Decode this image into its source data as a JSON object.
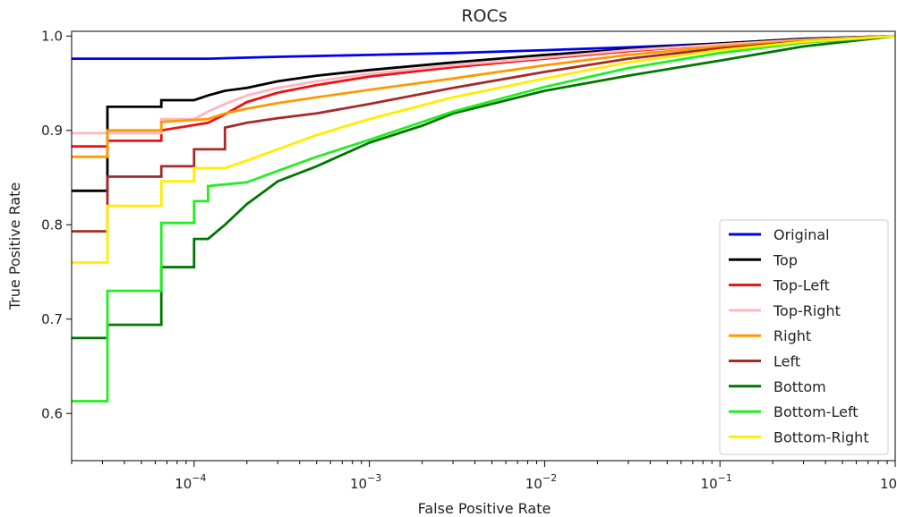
{
  "chart_data": {
    "type": "line",
    "title": "ROCs",
    "xlabel": "False Positive Rate",
    "ylabel": "True Positive Rate",
    "xscale": "log",
    "xlim": [
      2e-05,
      1.0
    ],
    "ylim": [
      0.55,
      1.005
    ],
    "grid": false,
    "legend_position": "lower-right",
    "xticks": [
      {
        "value": 0.0001,
        "base": "10",
        "exp": "−4"
      },
      {
        "value": 0.001,
        "base": "10",
        "exp": "−3"
      },
      {
        "value": 0.01,
        "base": "10",
        "exp": "−2"
      },
      {
        "value": 0.1,
        "base": "10",
        "exp": "−1"
      },
      {
        "value": 1.0,
        "base": "10",
        "exp": "0"
      }
    ],
    "yticks": [
      {
        "value": 0.6,
        "label": "0.6"
      },
      {
        "value": 0.7,
        "label": "0.7"
      },
      {
        "value": 0.8,
        "label": "0.8"
      },
      {
        "value": 0.9,
        "label": "0.9"
      },
      {
        "value": 1.0,
        "label": "1.0"
      }
    ],
    "series": [
      {
        "name": "Original",
        "color": "#0000ee",
        "points": [
          [
            2e-05,
            0.976
          ],
          [
            0.00012,
            0.976
          ],
          [
            0.0003,
            0.978
          ],
          [
            0.001,
            0.98
          ],
          [
            0.003,
            0.982
          ],
          [
            0.01,
            0.985
          ],
          [
            0.03,
            0.988
          ],
          [
            0.1,
            0.992
          ],
          [
            0.3,
            0.997
          ],
          [
            1.0,
            1.0
          ]
        ]
      },
      {
        "name": "Top",
        "color": "#000000",
        "points": [
          [
            2e-05,
            0.836
          ],
          [
            3.2e-05,
            0.836
          ],
          [
            3.2e-05,
            0.925
          ],
          [
            6.5e-05,
            0.925
          ],
          [
            6.5e-05,
            0.932
          ],
          [
            0.0001,
            0.932
          ],
          [
            0.00012,
            0.937
          ],
          [
            0.00015,
            0.942
          ],
          [
            0.0002,
            0.945
          ],
          [
            0.0003,
            0.952
          ],
          [
            0.0005,
            0.958
          ],
          [
            0.001,
            0.964
          ],
          [
            0.003,
            0.972
          ],
          [
            0.01,
            0.98
          ],
          [
            0.03,
            0.986
          ],
          [
            0.1,
            0.992
          ],
          [
            0.3,
            0.997
          ],
          [
            1.0,
            1.0
          ]
        ]
      },
      {
        "name": "Top-Left",
        "color": "#ee1111",
        "points": [
          [
            2e-05,
            0.883
          ],
          [
            3.2e-05,
            0.883
          ],
          [
            3.2e-05,
            0.889
          ],
          [
            6.5e-05,
            0.889
          ],
          [
            6.5e-05,
            0.9
          ],
          [
            0.00012,
            0.908
          ],
          [
            0.00015,
            0.917
          ],
          [
            0.0002,
            0.93
          ],
          [
            0.0003,
            0.94
          ],
          [
            0.0005,
            0.948
          ],
          [
            0.001,
            0.957
          ],
          [
            0.003,
            0.967
          ],
          [
            0.01,
            0.976
          ],
          [
            0.03,
            0.984
          ],
          [
            0.1,
            0.991
          ],
          [
            0.3,
            0.996
          ],
          [
            1.0,
            1.0
          ]
        ]
      },
      {
        "name": "Top-Right",
        "color": "#ffb6c1",
        "points": [
          [
            2e-05,
            0.897
          ],
          [
            6.5e-05,
            0.897
          ],
          [
            6.5e-05,
            0.912
          ],
          [
            0.0001,
            0.912
          ],
          [
            0.00012,
            0.92
          ],
          [
            0.00015,
            0.928
          ],
          [
            0.0002,
            0.937
          ],
          [
            0.0003,
            0.945
          ],
          [
            0.0005,
            0.952
          ],
          [
            0.001,
            0.96
          ],
          [
            0.003,
            0.969
          ],
          [
            0.01,
            0.977
          ],
          [
            0.03,
            0.985
          ],
          [
            0.1,
            0.991
          ],
          [
            0.3,
            0.996
          ],
          [
            1.0,
            1.0
          ]
        ]
      },
      {
        "name": "Right",
        "color": "#ff9900",
        "points": [
          [
            2e-05,
            0.872
          ],
          [
            3.2e-05,
            0.872
          ],
          [
            3.2e-05,
            0.9
          ],
          [
            6.5e-05,
            0.9
          ],
          [
            6.5e-05,
            0.909
          ],
          [
            0.00012,
            0.912
          ],
          [
            0.00015,
            0.918
          ],
          [
            0.0002,
            0.923
          ],
          [
            0.0003,
            0.929
          ],
          [
            0.0005,
            0.935
          ],
          [
            0.001,
            0.943
          ],
          [
            0.003,
            0.955
          ],
          [
            0.01,
            0.969
          ],
          [
            0.03,
            0.98
          ],
          [
            0.1,
            0.989
          ],
          [
            0.3,
            0.995
          ],
          [
            1.0,
            1.0
          ]
        ]
      },
      {
        "name": "Left",
        "color": "#a52a2a",
        "points": [
          [
            2e-05,
            0.793
          ],
          [
            3.2e-05,
            0.793
          ],
          [
            3.2e-05,
            0.851
          ],
          [
            6.5e-05,
            0.851
          ],
          [
            6.5e-05,
            0.862
          ],
          [
            0.0001,
            0.862
          ],
          [
            0.0001,
            0.88
          ],
          [
            0.00015,
            0.88
          ],
          [
            0.00015,
            0.903
          ],
          [
            0.0002,
            0.908
          ],
          [
            0.0003,
            0.913
          ],
          [
            0.0005,
            0.918
          ],
          [
            0.001,
            0.928
          ],
          [
            0.003,
            0.945
          ],
          [
            0.01,
            0.962
          ],
          [
            0.03,
            0.976
          ],
          [
            0.1,
            0.987
          ],
          [
            0.3,
            0.994
          ],
          [
            1.0,
            1.0
          ]
        ]
      },
      {
        "name": "Bottom",
        "color": "#007700",
        "points": [
          [
            2e-05,
            0.68
          ],
          [
            3.2e-05,
            0.68
          ],
          [
            3.2e-05,
            0.694
          ],
          [
            6.5e-05,
            0.694
          ],
          [
            6.5e-05,
            0.755
          ],
          [
            0.0001,
            0.755
          ],
          [
            0.0001,
            0.785
          ],
          [
            0.00012,
            0.785
          ],
          [
            0.00015,
            0.8
          ],
          [
            0.0002,
            0.822
          ],
          [
            0.00025,
            0.835
          ],
          [
            0.0003,
            0.846
          ],
          [
            0.0005,
            0.862
          ],
          [
            0.001,
            0.887
          ],
          [
            0.002,
            0.905
          ],
          [
            0.003,
            0.918
          ],
          [
            0.005,
            0.928
          ],
          [
            0.01,
            0.942
          ],
          [
            0.03,
            0.958
          ],
          [
            0.1,
            0.974
          ],
          [
            0.3,
            0.989
          ],
          [
            1.0,
            1.0
          ]
        ]
      },
      {
        "name": "Bottom-Left",
        "color": "#22ee22",
        "points": [
          [
            2e-05,
            0.613
          ],
          [
            3.2e-05,
            0.613
          ],
          [
            3.2e-05,
            0.73
          ],
          [
            6.5e-05,
            0.73
          ],
          [
            6.5e-05,
            0.802
          ],
          [
            0.0001,
            0.802
          ],
          [
            0.0001,
            0.825
          ],
          [
            0.00012,
            0.825
          ],
          [
            0.00012,
            0.841
          ],
          [
            0.0002,
            0.845
          ],
          [
            0.0003,
            0.857
          ],
          [
            0.0005,
            0.872
          ],
          [
            0.001,
            0.89
          ],
          [
            0.003,
            0.92
          ],
          [
            0.01,
            0.946
          ],
          [
            0.03,
            0.966
          ],
          [
            0.1,
            0.982
          ],
          [
            0.3,
            0.993
          ],
          [
            1.0,
            1.0
          ]
        ]
      },
      {
        "name": "Bottom-Right",
        "color": "#ffee00",
        "points": [
          [
            2e-05,
            0.76
          ],
          [
            3.2e-05,
            0.76
          ],
          [
            3.2e-05,
            0.82
          ],
          [
            6.5e-05,
            0.82
          ],
          [
            6.5e-05,
            0.846
          ],
          [
            0.0001,
            0.846
          ],
          [
            0.0001,
            0.86
          ],
          [
            0.00015,
            0.86
          ],
          [
            0.0002,
            0.868
          ],
          [
            0.0003,
            0.88
          ],
          [
            0.0005,
            0.895
          ],
          [
            0.001,
            0.912
          ],
          [
            0.003,
            0.935
          ],
          [
            0.01,
            0.955
          ],
          [
            0.03,
            0.972
          ],
          [
            0.1,
            0.985
          ],
          [
            0.3,
            0.994
          ],
          [
            1.0,
            1.0
          ]
        ]
      }
    ]
  }
}
